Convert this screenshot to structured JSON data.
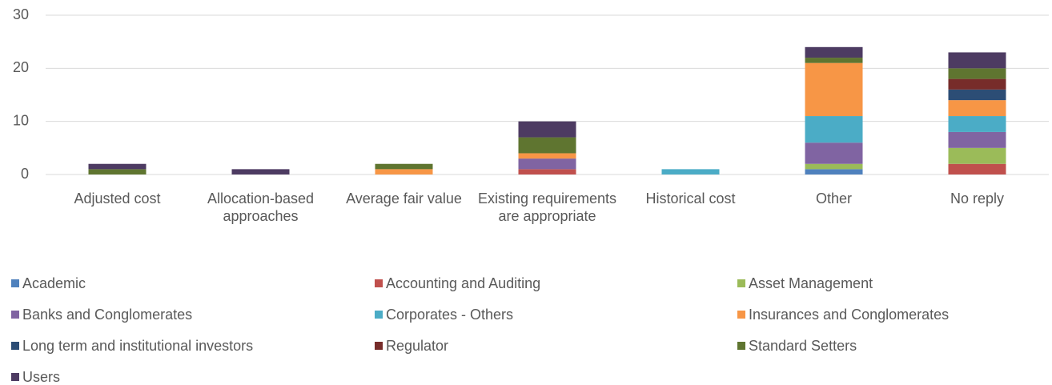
{
  "chart_data": {
    "type": "stacked_bar",
    "categories": [
      "Adjusted cost",
      "Allocation-based approaches",
      "Average fair value",
      "Existing requirements are appropriate",
      "Historical cost",
      "Other",
      "No reply"
    ],
    "series": [
      {
        "name": "Academic",
        "color": "#4f81bd",
        "values": [
          0,
          0,
          0,
          0,
          0,
          1,
          0
        ]
      },
      {
        "name": "Accounting and Auditing",
        "color": "#c0504d",
        "values": [
          0,
          0,
          0,
          1,
          0,
          0,
          2
        ]
      },
      {
        "name": "Asset Management",
        "color": "#9bbb59",
        "values": [
          0,
          0,
          0,
          0,
          0,
          1,
          3
        ]
      },
      {
        "name": "Banks and Conglomerates",
        "color": "#8064a2",
        "values": [
          0,
          0,
          0,
          2,
          0,
          4,
          3
        ]
      },
      {
        "name": "Corporates - Others",
        "color": "#4bacc6",
        "values": [
          0,
          0,
          0,
          0,
          1,
          5,
          3
        ]
      },
      {
        "name": "Insurances and Conglomerates",
        "color": "#f79646",
        "values": [
          0,
          0,
          1,
          1,
          0,
          10,
          3
        ]
      },
      {
        "name": "Long term and institutional investors",
        "color": "#2c4d75",
        "values": [
          0,
          0,
          0,
          0,
          0,
          0,
          2
        ]
      },
      {
        "name": "Regulator",
        "color": "#772c2a",
        "values": [
          0,
          0,
          0,
          0,
          0,
          0,
          2
        ]
      },
      {
        "name": "Standard Setters",
        "color": "#5f7530",
        "values": [
          1,
          0,
          1,
          3,
          0,
          1,
          2
        ]
      },
      {
        "name": "Users",
        "color": "#4d3b62",
        "values": [
          1,
          1,
          0,
          3,
          0,
          2,
          3
        ]
      }
    ],
    "ylim": [
      0,
      30
    ],
    "yticks": [
      0,
      10,
      20,
      30
    ],
    "grid": true,
    "legend": "bottom"
  }
}
